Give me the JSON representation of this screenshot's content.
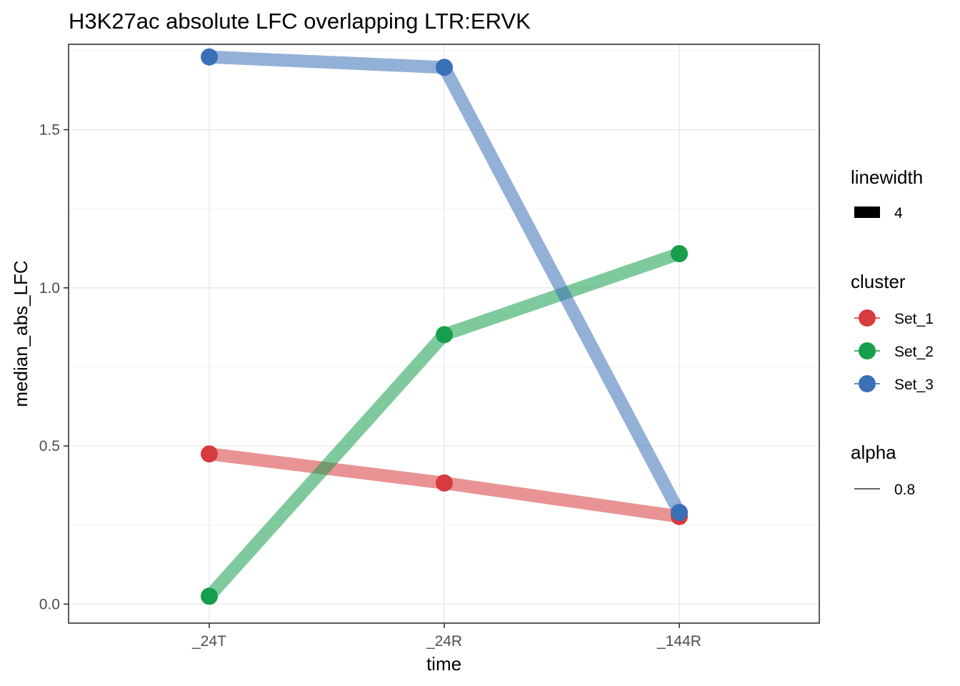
{
  "chart_data": {
    "type": "line",
    "title": "H3K27ac absolute LFC overlapping LTR:ERVK",
    "xlabel": "time",
    "ylabel": "median_abs_LFC",
    "categories": [
      "_24T",
      "_24R",
      "_144R"
    ],
    "ylim": [
      -0.06,
      1.77
    ],
    "yticks": [
      0.0,
      0.5,
      1.0,
      1.5
    ],
    "ytick_labels": [
      "0.0",
      "0.5",
      "1.0",
      "1.5"
    ],
    "grid": true,
    "legend_position": "right",
    "series": [
      {
        "name": "Set_1",
        "color": "#D73B3E",
        "values": [
          0.475,
          0.383,
          0.277
        ]
      },
      {
        "name": "Set_2",
        "color": "#169E4C",
        "values": [
          0.025,
          0.852,
          1.108
        ]
      },
      {
        "name": "Set_3",
        "color": "#3A70B6",
        "values": [
          1.73,
          1.697,
          0.29
        ]
      }
    ],
    "legends": [
      {
        "title": "linewidth",
        "items": [
          {
            "label": "4"
          }
        ]
      },
      {
        "title": "cluster",
        "items": [
          {
            "label": "Set_1"
          },
          {
            "label": "Set_2"
          },
          {
            "label": "Set_3"
          }
        ]
      },
      {
        "title": "alpha",
        "items": [
          {
            "label": "0.8"
          }
        ]
      }
    ]
  }
}
